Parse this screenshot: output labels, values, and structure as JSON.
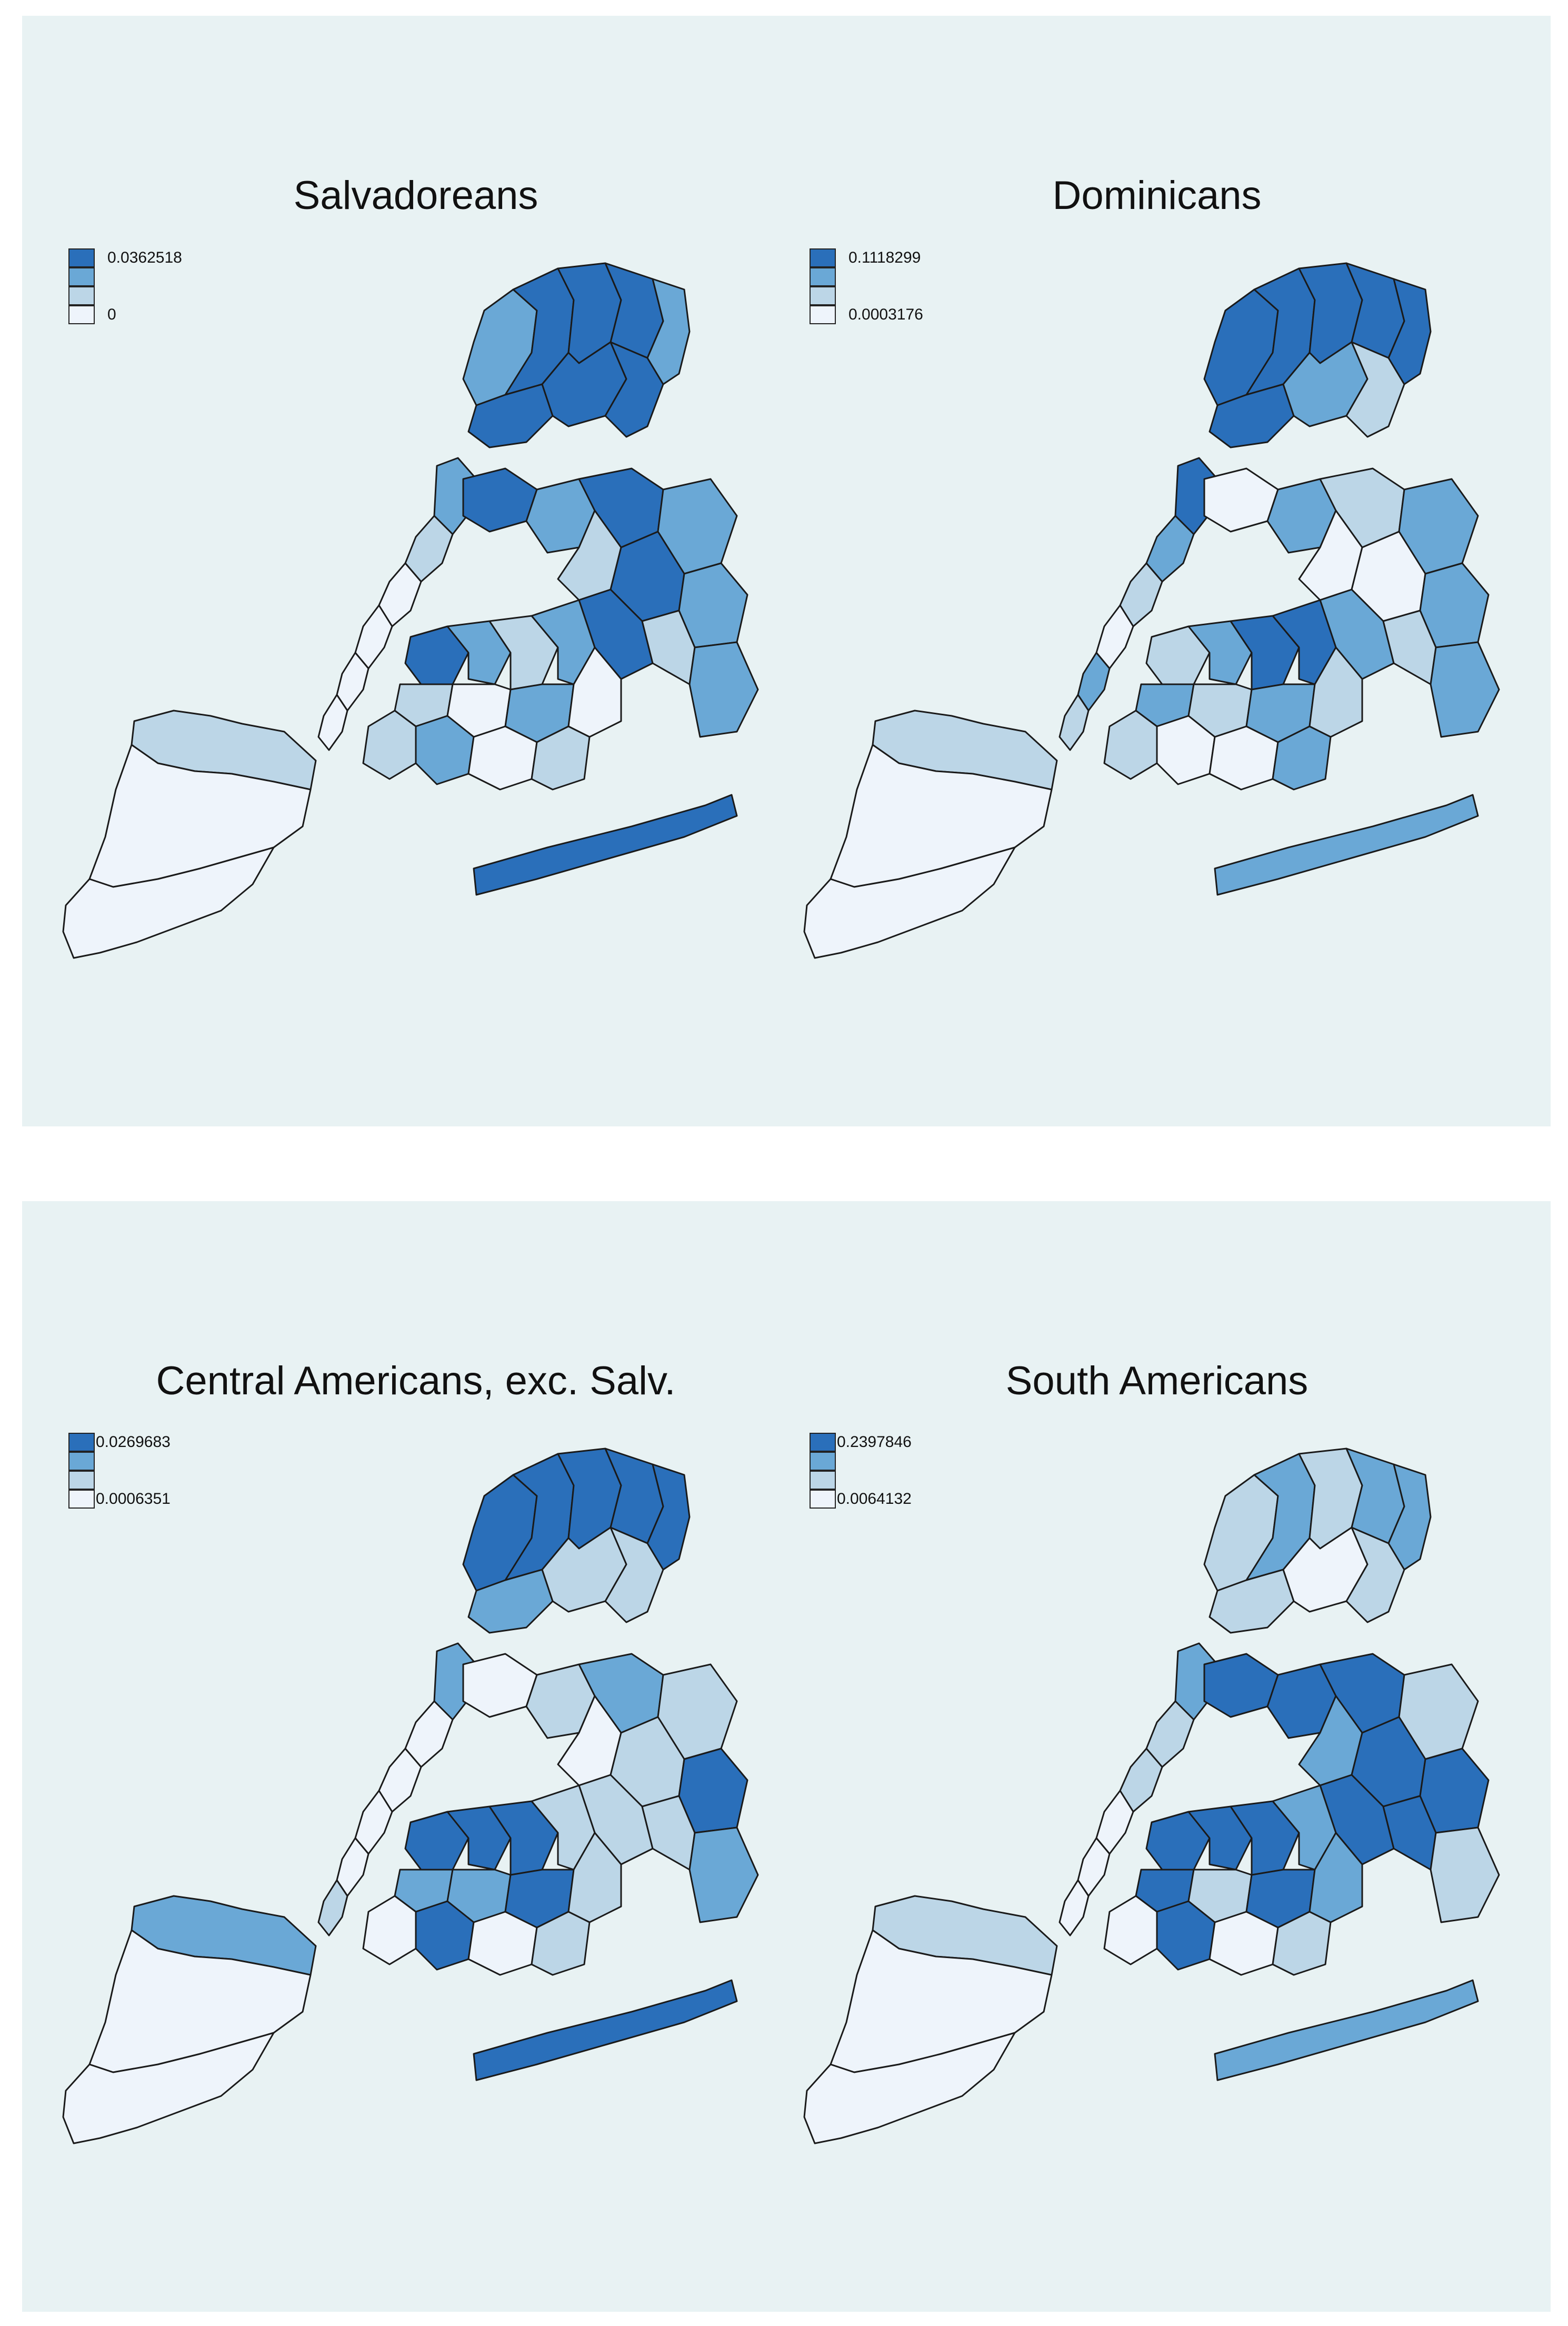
{
  "palette": {
    "q4": "#2a6fba",
    "q3": "#6aa8d6",
    "q2": "#bcd6e7",
    "q1": "#eef4fb"
  },
  "panels": [
    {
      "title": "Salvadoreans",
      "legend_max": "0.0362518",
      "legend_min": "0",
      "bronx": [
        "q3",
        "q4",
        "q4",
        "q4",
        "q4",
        "q4",
        "q4",
        "q3"
      ],
      "manhattan": [
        "q3",
        "q2",
        "q1",
        "q1",
        "q1",
        "q1"
      ],
      "queens": [
        "q4",
        "q3",
        "q4",
        "q3",
        "q2",
        "q4",
        "q3",
        "q4",
        "q2",
        "q3"
      ],
      "brooklyn": [
        "q4",
        "q3",
        "q2",
        "q3",
        "q2",
        "q1",
        "q3",
        "q1",
        "q2",
        "q3",
        "q1",
        "q2"
      ],
      "staten": [
        "q2",
        "q1",
        "q1"
      ],
      "rockaway": "q4"
    },
    {
      "title": "Dominicans",
      "legend_max": "0.1118299",
      "legend_min": "0.0003176",
      "bronx": [
        "q4",
        "q4",
        "q4",
        "q4",
        "q4",
        "q3",
        "q2",
        "q4"
      ],
      "manhattan": [
        "q4",
        "q3",
        "q2",
        "q1",
        "q3",
        "q2"
      ],
      "queens": [
        "q1",
        "q3",
        "q2",
        "q3",
        "q1",
        "q1",
        "q3",
        "q3",
        "q2",
        "q3"
      ],
      "brooklyn": [
        "q2",
        "q3",
        "q4",
        "q4",
        "q3",
        "q2",
        "q3",
        "q2",
        "q2",
        "q1",
        "q1",
        "q3"
      ],
      "staten": [
        "q2",
        "q1",
        "q1"
      ],
      "rockaway": "q3"
    },
    {
      "title": "Central Americans, exc. Salv.",
      "legend_max": "0.0269683",
      "legend_min": "0.0006351",
      "bronx": [
        "q4",
        "q4",
        "q4",
        "q4",
        "q3",
        "q2",
        "q2",
        "q4"
      ],
      "manhattan": [
        "q3",
        "q1",
        "q1",
        "q1",
        "q1",
        "q2"
      ],
      "queens": [
        "q1",
        "q2",
        "q3",
        "q2",
        "q1",
        "q2",
        "q4",
        "q2",
        "q2",
        "q3"
      ],
      "brooklyn": [
        "q4",
        "q4",
        "q4",
        "q2",
        "q3",
        "q3",
        "q4",
        "q2",
        "q1",
        "q4",
        "q1",
        "q2"
      ],
      "staten": [
        "q3",
        "q1",
        "q1"
      ],
      "rockaway": "q4"
    },
    {
      "title": "South Americans",
      "legend_max": "0.2397846",
      "legend_min": "0.0064132",
      "bronx": [
        "q2",
        "q3",
        "q2",
        "q3",
        "q2",
        "q1",
        "q2",
        "q3"
      ],
      "manhattan": [
        "q3",
        "q2",
        "q2",
        "q1",
        "q1",
        "q1"
      ],
      "queens": [
        "q4",
        "q4",
        "q4",
        "q2",
        "q3",
        "q4",
        "q4",
        "q4",
        "q4",
        "q2"
      ],
      "brooklyn": [
        "q4",
        "q4",
        "q4",
        "q3",
        "q4",
        "q2",
        "q4",
        "q3",
        "q1",
        "q4",
        "q1",
        "q2"
      ],
      "staten": [
        "q2",
        "q1",
        "q1"
      ],
      "rockaway": "q3"
    }
  ]
}
